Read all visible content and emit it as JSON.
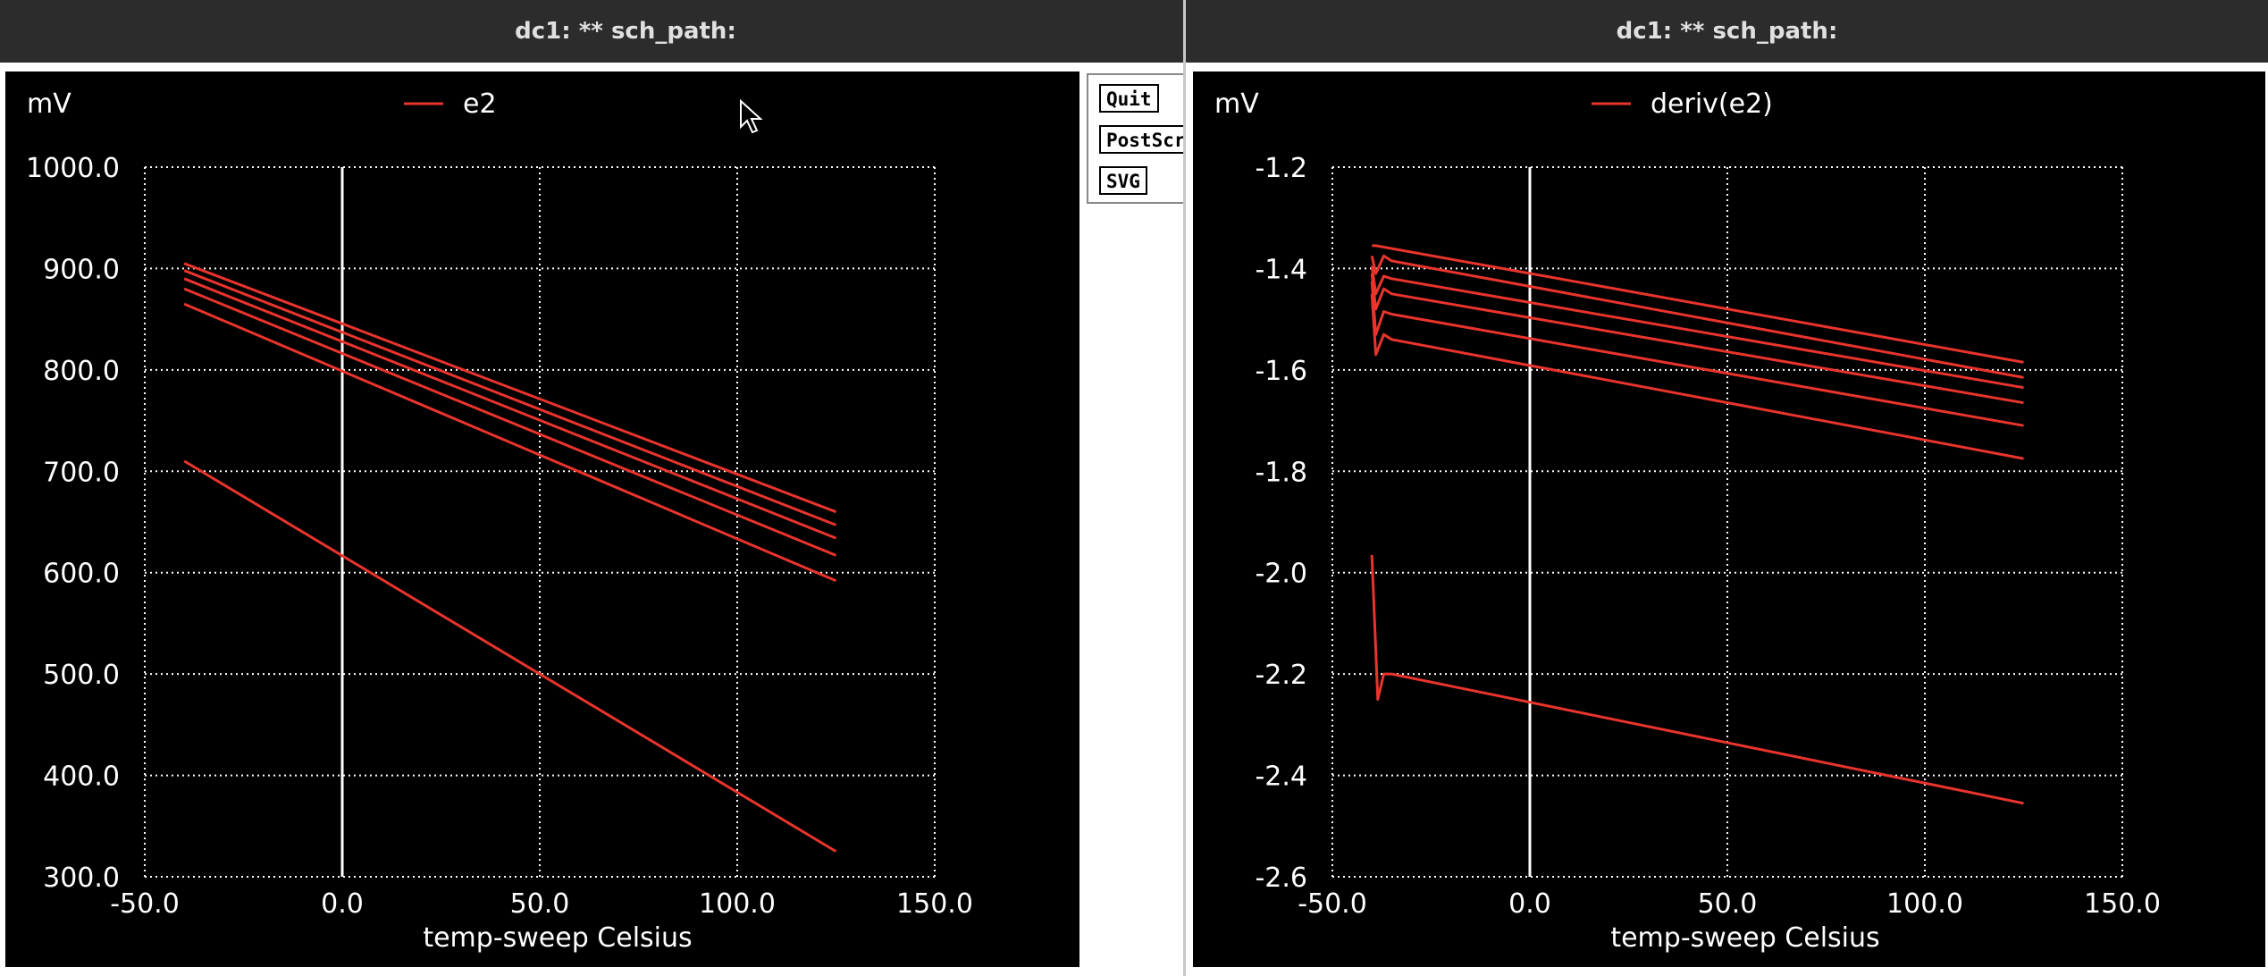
{
  "windows": {
    "left": {
      "title": "dc1: ** sch_path:",
      "minimize_glyph": "–",
      "maximize_glyph": "□"
    },
    "right": {
      "title": "dc1: ** sch_path:"
    }
  },
  "side_buttons": {
    "quit": "Quit",
    "postscript": "PostScript",
    "svg": "SVG"
  },
  "colors": {
    "background": "#000000",
    "grid": "#ffffff",
    "trace": "#e8342c",
    "zero_line": "#ffffff"
  },
  "chart_data": [
    {
      "type": "line",
      "title": "",
      "legend": [
        "e2"
      ],
      "ylabel": "mV",
      "xlabel": "temp-sweep  Celsius",
      "xlim": [
        -50,
        150
      ],
      "ylim": [
        300,
        1000
      ],
      "xticks": [
        "-50.0",
        "0.0",
        "50.0",
        "100.0",
        "150.0"
      ],
      "yticks": [
        "300.0",
        "400.0",
        "500.0",
        "600.0",
        "700.0",
        "800.0",
        "900.0",
        "1000.0"
      ],
      "grid": true,
      "series": [
        {
          "x": [
            -40,
            125
          ],
          "y": [
            905,
            660
          ]
        },
        {
          "x": [
            -40,
            125
          ],
          "y": [
            898,
            647
          ]
        },
        {
          "x": [
            -40,
            125
          ],
          "y": [
            890,
            634
          ]
        },
        {
          "x": [
            -40,
            125
          ],
          "y": [
            880,
            617
          ]
        },
        {
          "x": [
            -40,
            125
          ],
          "y": [
            865,
            592
          ]
        },
        {
          "x": [
            -40,
            125
          ],
          "y": [
            710,
            325
          ]
        }
      ]
    },
    {
      "type": "line",
      "title": "",
      "legend": [
        "deriv(e2)"
      ],
      "ylabel": "mV",
      "xlabel": "temp-sweep  Celsius",
      "xlim": [
        -50,
        150
      ],
      "ylim": [
        -2.6,
        -1.2
      ],
      "xticks": [
        "-50.0",
        "0.0",
        "50.0",
        "100.0",
        "150.0"
      ],
      "yticks": [
        "-2.6",
        "-2.4",
        "-2.2",
        "-2.0",
        "-1.8",
        "-1.6",
        "-1.4",
        "-1.2"
      ],
      "grid": true,
      "series": [
        {
          "x": [
            -40,
            -39,
            125
          ],
          "y": [
            -1.355,
            -1.355,
            -1.585
          ]
        },
        {
          "x": [
            -40,
            -39,
            -37,
            -35,
            125
          ],
          "y": [
            -1.375,
            -1.41,
            -1.375,
            -1.385,
            -1.615
          ]
        },
        {
          "x": [
            -40,
            -39,
            -37,
            -35,
            125
          ],
          "y": [
            -1.395,
            -1.45,
            -1.415,
            -1.42,
            -1.635
          ]
        },
        {
          "x": [
            -40,
            -39,
            -37,
            -35,
            125
          ],
          "y": [
            -1.41,
            -1.48,
            -1.44,
            -1.45,
            -1.665
          ]
        },
        {
          "x": [
            -40,
            -39,
            -37,
            -35,
            125
          ],
          "y": [
            -1.425,
            -1.53,
            -1.485,
            -1.49,
            -1.71
          ]
        },
        {
          "x": [
            -40,
            -39,
            -37,
            -35,
            125
          ],
          "y": [
            -1.45,
            -1.57,
            -1.53,
            -1.54,
            -1.775
          ]
        },
        {
          "x": [
            -40,
            -38.5,
            -37,
            -35,
            125
          ],
          "y": [
            -1.965,
            -2.25,
            -2.2,
            -2.2,
            -2.455
          ]
        }
      ]
    }
  ]
}
